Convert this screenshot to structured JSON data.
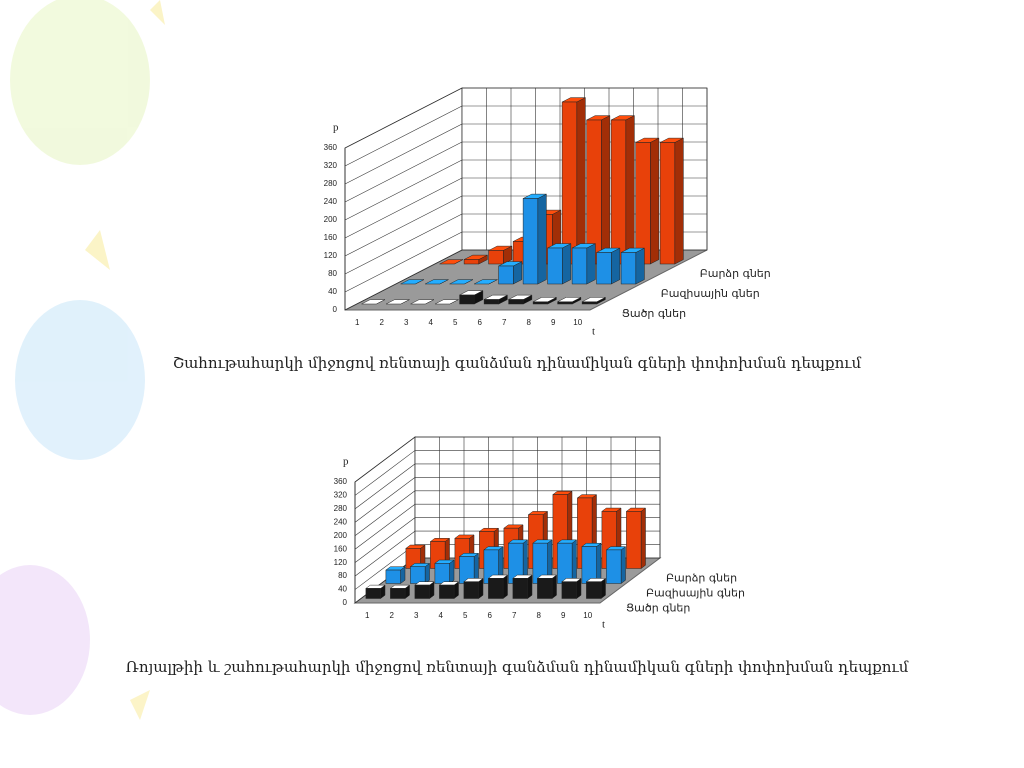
{
  "chart_data": [
    {
      "type": "bar3d",
      "title": "Շահութահարկի միջոցով ռենտայի գանձման դինամիկան գների փոփոխման դեպքում",
      "x_label": "t",
      "y_label": "p",
      "categories": [
        "1",
        "2",
        "3",
        "4",
        "5",
        "6",
        "7",
        "8",
        "9",
        "10"
      ],
      "series": [
        {
          "name": "Բարձր գներ",
          "color": "#e8410a",
          "values": [
            0,
            10,
            30,
            50,
            110,
            360,
            320,
            320,
            270,
            270
          ]
        },
        {
          "name": "Բազիսային գներ",
          "color": "#1e90e6",
          "values": [
            0,
            0,
            0,
            0,
            40,
            190,
            80,
            80,
            70,
            70
          ]
        },
        {
          "name": "Ցածր գներ",
          "color": "#1a1a1a",
          "values": [
            0,
            0,
            0,
            0,
            20,
            10,
            10,
            5,
            5,
            5
          ]
        }
      ],
      "ylim": [
        0,
        360
      ],
      "yticks": [
        0,
        40,
        80,
        120,
        160,
        200,
        240,
        280,
        320,
        360
      ],
      "grid": true
    },
    {
      "type": "bar3d",
      "title": "Ռոյալթիի և շահութահարկի միջոցով ռենտայի գանձման դինամիկան գների փոփոխման դեպքում",
      "x_label": "t",
      "y_label": "p",
      "categories": [
        "1",
        "2",
        "3",
        "4",
        "5",
        "6",
        "7",
        "8",
        "9",
        "10"
      ],
      "series": [
        {
          "name": "Բարձր գներ",
          "color": "#e8410a",
          "values": [
            60,
            80,
            90,
            110,
            120,
            160,
            220,
            210,
            170,
            170
          ]
        },
        {
          "name": "Բազիսային գներ",
          "color": "#1e90e6",
          "values": [
            40,
            50,
            60,
            80,
            100,
            120,
            120,
            120,
            110,
            100
          ]
        },
        {
          "name": "Ցածր գներ",
          "color": "#1a1a1a",
          "values": [
            30,
            30,
            40,
            40,
            50,
            60,
            60,
            60,
            50,
            50
          ]
        }
      ],
      "ylim": [
        0,
        360
      ],
      "yticks": [
        0,
        40,
        80,
        120,
        160,
        200,
        240,
        280,
        320,
        360
      ],
      "grid": true
    }
  ]
}
